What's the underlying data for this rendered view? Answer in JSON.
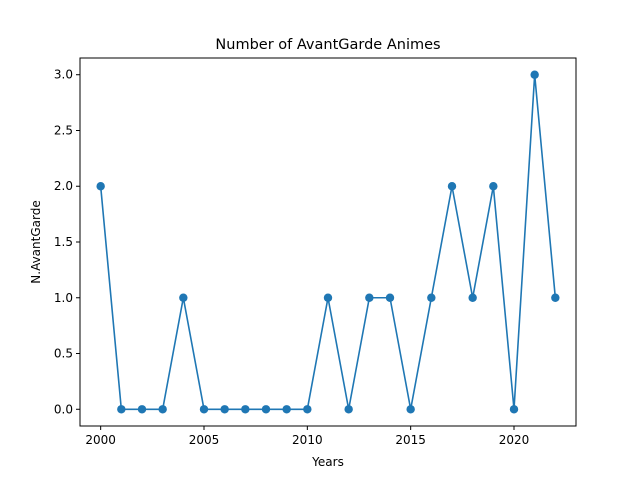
{
  "chart_data": {
    "type": "line",
    "title": "Number of AvantGarde Animes",
    "xlabel": "Years",
    "ylabel": "N.AvantGarde",
    "x": [
      2000,
      2001,
      2002,
      2003,
      2004,
      2005,
      2006,
      2007,
      2008,
      2009,
      2010,
      2011,
      2012,
      2013,
      2014,
      2015,
      2016,
      2017,
      2018,
      2019,
      2020,
      2021,
      2022
    ],
    "series": [
      {
        "values": [
          2,
          0,
          0,
          0,
          1,
          0,
          0,
          0,
          0,
          0,
          0,
          1,
          0,
          1,
          1,
          0,
          1,
          2,
          1,
          2,
          0,
          3,
          1
        ]
      }
    ],
    "xlim": [
      1999,
      2023
    ],
    "ylim": [
      -0.15,
      3.15
    ],
    "xticks": [
      "2000",
      "2005",
      "2010",
      "2015",
      "2020"
    ],
    "yticks": [
      "0.0",
      "0.5",
      "1.0",
      "1.5",
      "2.0",
      "2.5",
      "3.0"
    ],
    "line_color": "#1f77b4",
    "marker": "circle",
    "grid": false,
    "legend": false
  }
}
